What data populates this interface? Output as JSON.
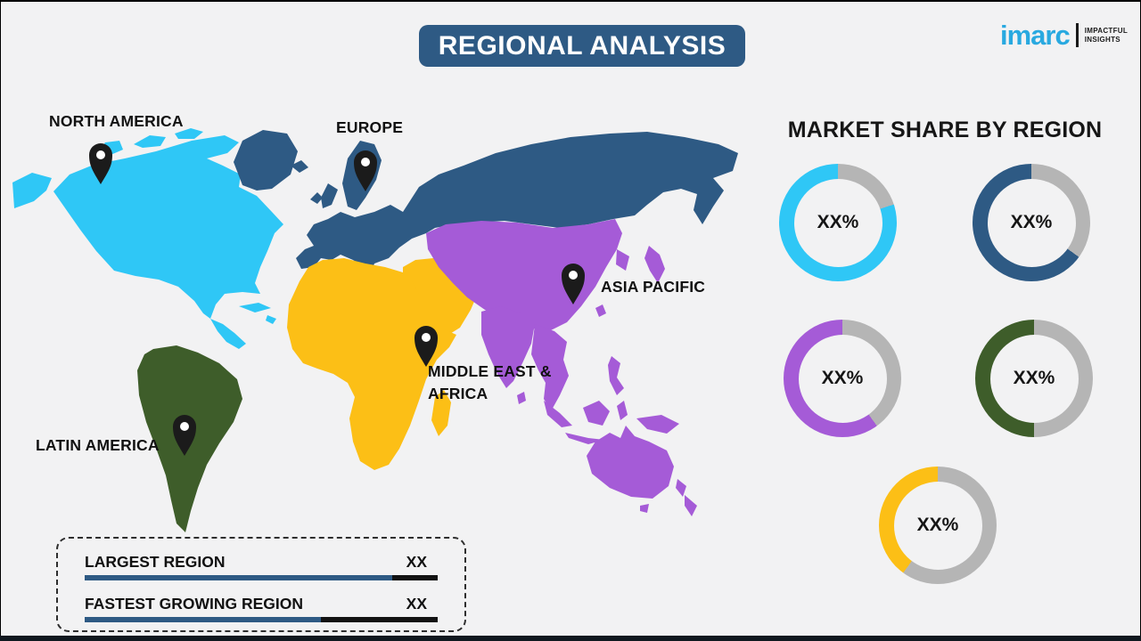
{
  "page": {
    "title": "REGIONAL ANALYSIS"
  },
  "logo": {
    "brand": "imarc",
    "tagline_line1": "IMPACTFUL",
    "tagline_line2": "INSIGHTS"
  },
  "colors": {
    "background": "#f2f2f3",
    "banner": "#2e5a84",
    "north_america": "#2fc7f6",
    "europe": "#2e5a84",
    "asia_pacific": "#a55bd7",
    "middle_east_africa": "#fcbf16",
    "latin_america": "#3e5d2a",
    "donut_track": "#b5b5b5",
    "bar_blue": "#2e5a84",
    "bar_black": "#121212",
    "logo_blue": "#29a9e0"
  },
  "map": {
    "labels": {
      "north_america": "NORTH AMERICA",
      "europe": "EUROPE",
      "asia_pacific": "ASIA PACIFIC",
      "middle_east_line1": "MIDDLE EAST &",
      "middle_east_line2": "AFRICA",
      "latin_america": "LATIN AMERICA"
    },
    "regions": [
      {
        "name": "North America",
        "color": "#2fc7f6"
      },
      {
        "name": "Europe",
        "color": "#2e5a84"
      },
      {
        "name": "Asia Pacific",
        "color": "#a55bd7"
      },
      {
        "name": "Middle East & Africa",
        "color": "#fcbf16"
      },
      {
        "name": "Latin America",
        "color": "#3e5d2a"
      }
    ]
  },
  "market_share": {
    "title": "MARKET SHARE BY REGION",
    "donuts": [
      {
        "region": "North America",
        "label": "XX%",
        "value_pct": 80,
        "color": "#2fc7f6"
      },
      {
        "region": "Europe",
        "label": "XX%",
        "value_pct": 65,
        "color": "#2e5a84"
      },
      {
        "region": "Asia Pacific",
        "label": "XX%",
        "value_pct": 60,
        "color": "#a55bd7"
      },
      {
        "region": "Latin America",
        "label": "XX%",
        "value_pct": 50,
        "color": "#3e5d2a"
      },
      {
        "region": "Middle East & Africa",
        "label": "XX%",
        "value_pct": 40,
        "color": "#fcbf16"
      }
    ]
  },
  "legend": {
    "rows": [
      {
        "label": "LARGEST REGION",
        "value": "XX",
        "fill_pct": 87
      },
      {
        "label": "FASTEST GROWING REGION",
        "value": "XX",
        "fill_pct": 67
      }
    ]
  },
  "chart_data": [
    {
      "type": "pie",
      "title": "MARKET SHARE BY REGION",
      "note": "Five donut gauges; numeric values are placeholder text 'XX%'. Ring fill fractions estimated from pixels, remainder gray.",
      "series": [
        {
          "name": "North America",
          "label": "XX%",
          "ring_fill_fraction": 0.8,
          "color": "#2fc7f6"
        },
        {
          "name": "Europe",
          "label": "XX%",
          "ring_fill_fraction": 0.65,
          "color": "#2e5a84"
        },
        {
          "name": "Asia Pacific",
          "label": "XX%",
          "ring_fill_fraction": 0.6,
          "color": "#a55bd7"
        },
        {
          "name": "Latin America",
          "label": "XX%",
          "ring_fill_fraction": 0.5,
          "color": "#3e5d2a"
        },
        {
          "name": "Middle East & Africa",
          "label": "XX%",
          "ring_fill_fraction": 0.4,
          "color": "#fcbf16"
        }
      ],
      "legend_position": "none",
      "grid": false
    },
    {
      "type": "bar",
      "title": "Legend box",
      "categories": [
        "LARGEST REGION",
        "FASTEST GROWING REGION"
      ],
      "values": [
        "XX",
        "XX"
      ],
      "bar_fill_fractions": [
        0.87,
        0.67
      ],
      "bar_colors": [
        "#2e5a84",
        "#2e5a84"
      ],
      "track_color": "#121212"
    }
  ]
}
